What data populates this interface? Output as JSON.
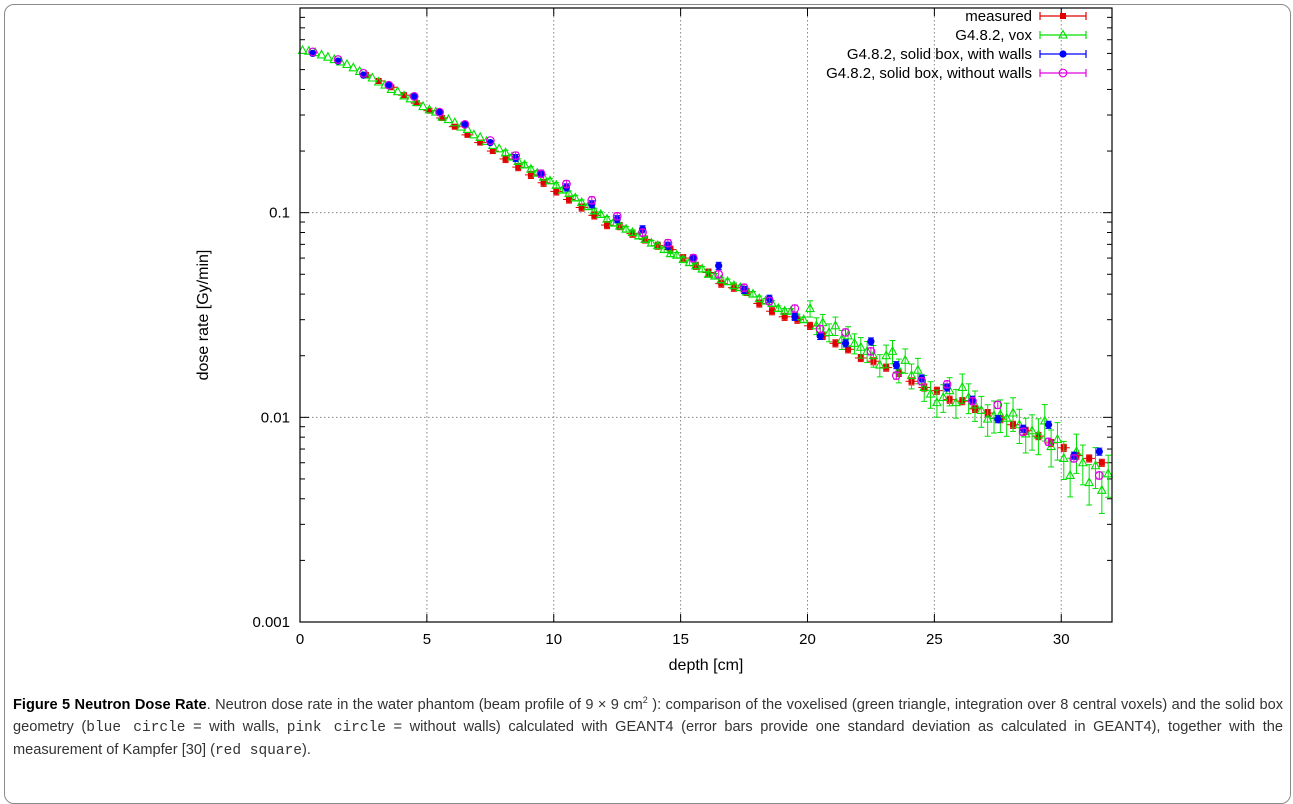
{
  "chart_data": {
    "type": "scatter",
    "title": "",
    "xlabel": "depth [cm]",
    "ylabel": "dose rate [Gy/min]",
    "xlim": [
      0,
      32
    ],
    "ylim": [
      0.001,
      1
    ],
    "yscale": "log",
    "grid": true,
    "legend_position": "top-right",
    "x_ticks": [
      "0",
      "5",
      "10",
      "15",
      "20",
      "25",
      "30"
    ],
    "y_ticks": [
      "0.001",
      "0.01",
      "0.1"
    ],
    "series": [
      {
        "name": "measured",
        "color": "#e00000",
        "marker": "filled-square",
        "x": [
          2.6,
          3.1,
          3.6,
          4.1,
          4.6,
          5.1,
          5.6,
          6.1,
          6.6,
          7.1,
          7.6,
          8.1,
          8.6,
          9.1,
          9.6,
          10.1,
          10.6,
          11.1,
          11.6,
          12.1,
          12.6,
          13.1,
          13.6,
          14.1,
          14.6,
          15.1,
          15.6,
          16.1,
          16.6,
          17.1,
          17.6,
          18.1,
          18.6,
          19.1,
          19.6,
          20.1,
          20.6,
          21.1,
          21.6,
          22.1,
          22.6,
          23.1,
          23.6,
          24.1,
          24.6,
          25.1,
          25.6,
          26.1,
          26.6,
          27.1,
          27.6,
          28.1,
          28.6,
          29.1,
          29.6,
          30.1,
          30.6,
          31.1,
          31.6
        ],
        "y": [
          0.47,
          0.44,
          0.41,
          0.375,
          0.343,
          0.315,
          0.29,
          0.263,
          0.24,
          0.22,
          0.2,
          0.183,
          0.167,
          0.153,
          0.14,
          0.127,
          0.116,
          0.106,
          0.097,
          0.087,
          0.086,
          0.079,
          0.074,
          0.069,
          0.066,
          0.06,
          0.055,
          0.051,
          0.045,
          0.043,
          0.041,
          0.036,
          0.033,
          0.031,
          0.03,
          0.028,
          0.025,
          0.023,
          0.0215,
          0.0195,
          0.0188,
          0.0175,
          0.0165,
          0.015,
          0.014,
          0.0135,
          0.0122,
          0.012,
          0.011,
          0.0105,
          0.0098,
          0.0092,
          0.0086,
          0.0081,
          0.0075,
          0.0071,
          0.0065,
          0.0063,
          0.006
        ]
      },
      {
        "name": "G4.8.2, vox",
        "color": "#00e000",
        "marker": "open-triangle",
        "x": [
          0.1,
          0.35,
          0.6,
          0.85,
          1.1,
          1.35,
          1.6,
          1.85,
          2.1,
          2.35,
          2.6,
          2.85,
          3.1,
          3.35,
          3.6,
          3.85,
          4.1,
          4.35,
          4.6,
          4.85,
          5.1,
          5.35,
          5.6,
          5.85,
          6.1,
          6.35,
          6.6,
          6.85,
          7.1,
          7.35,
          7.6,
          7.85,
          8.1,
          8.35,
          8.6,
          8.85,
          9.1,
          9.35,
          9.6,
          9.85,
          10.1,
          10.35,
          10.6,
          10.85,
          11.1,
          11.35,
          11.6,
          11.85,
          12.1,
          12.35,
          12.6,
          12.85,
          13.1,
          13.35,
          13.6,
          13.85,
          14.1,
          14.35,
          14.6,
          14.85,
          15.1,
          15.35,
          15.6,
          15.85,
          16.1,
          16.35,
          16.6,
          16.85,
          17.1,
          17.35,
          17.6,
          17.85,
          18.1,
          18.35,
          18.6,
          18.85,
          19.1,
          19.35,
          19.6,
          19.85,
          20.1,
          20.35,
          20.6,
          20.85,
          21.1,
          21.35,
          21.6,
          21.85,
          22.1,
          22.35,
          22.6,
          22.85,
          23.1,
          23.35,
          23.6,
          23.85,
          24.1,
          24.35,
          24.6,
          24.85,
          25.1,
          25.35,
          25.6,
          25.85,
          26.1,
          26.35,
          26.6,
          26.85,
          27.1,
          27.35,
          27.6,
          27.85,
          28.1,
          28.35,
          28.6,
          28.85,
          29.1,
          29.35,
          29.6,
          29.85,
          30.1,
          30.35,
          30.6,
          30.85,
          31.1,
          31.35,
          31.6,
          31.85
        ],
        "y": [
          0.62,
          0.615,
          0.605,
          0.59,
          0.575,
          0.56,
          0.545,
          0.53,
          0.51,
          0.49,
          0.47,
          0.455,
          0.435,
          0.42,
          0.4,
          0.39,
          0.372,
          0.36,
          0.345,
          0.33,
          0.318,
          0.31,
          0.293,
          0.285,
          0.275,
          0.262,
          0.255,
          0.24,
          0.233,
          0.223,
          0.213,
          0.205,
          0.196,
          0.187,
          0.178,
          0.171,
          0.163,
          0.156,
          0.149,
          0.143,
          0.136,
          0.129,
          0.124,
          0.118,
          0.112,
          0.107,
          0.102,
          0.098,
          0.093,
          0.089,
          0.086,
          0.083,
          0.08,
          0.077,
          0.074,
          0.071,
          0.069,
          0.066,
          0.063,
          0.062,
          0.059,
          0.057,
          0.055,
          0.053,
          0.05,
          0.049,
          0.047,
          0.046,
          0.044,
          0.043,
          0.041,
          0.04,
          0.038,
          0.037,
          0.036,
          0.034,
          0.033,
          0.033,
          0.031,
          0.03,
          0.034,
          0.028,
          0.029,
          0.026,
          0.028,
          0.024,
          0.025,
          0.023,
          0.022,
          0.021,
          0.02,
          0.018,
          0.02,
          0.021,
          0.017,
          0.019,
          0.016,
          0.017,
          0.014,
          0.013,
          0.0118,
          0.0125,
          0.0135,
          0.0118,
          0.014,
          0.0125,
          0.0115,
          0.0108,
          0.0098,
          0.0102,
          0.0103,
          0.0099,
          0.0105,
          0.0092,
          0.0083,
          0.0086,
          0.0082,
          0.0096,
          0.0072,
          0.0078,
          0.0063,
          0.0052,
          0.0068,
          0.006,
          0.0048,
          0.0058,
          0.0044,
          0.0053
        ]
      },
      {
        "name": "G4.8.2, solid box, with walls",
        "color": "#0000ff",
        "marker": "filled-circle",
        "x": [
          0.5,
          1.5,
          2.5,
          3.5,
          4.5,
          5.5,
          6.5,
          7.5,
          8.5,
          9.5,
          10.5,
          11.5,
          12.5,
          13.5,
          14.5,
          15.5,
          16.5,
          17.5,
          18.5,
          19.5,
          20.5,
          21.5,
          22.5,
          23.5,
          24.5,
          25.5,
          26.5,
          27.5,
          28.5,
          29.5,
          30.5,
          31.5
        ],
        "y": [
          0.6,
          0.55,
          0.47,
          0.42,
          0.37,
          0.31,
          0.27,
          0.22,
          0.185,
          0.155,
          0.133,
          0.11,
          0.093,
          0.083,
          0.069,
          0.06,
          0.055,
          0.042,
          0.038,
          0.031,
          0.025,
          0.023,
          0.0235,
          0.018,
          0.0155,
          0.014,
          0.0122,
          0.0098,
          0.0088,
          0.0092,
          0.0065,
          0.0068
        ]
      },
      {
        "name": "G4.8.2, solid box, without walls",
        "color": "#e000e0",
        "marker": "open-circle",
        "x": [
          0.5,
          1.5,
          2.5,
          3.5,
          4.5,
          5.5,
          6.5,
          7.5,
          8.5,
          9.5,
          10.5,
          11.5,
          12.5,
          13.5,
          14.5,
          15.5,
          16.5,
          17.5,
          18.5,
          19.5,
          20.5,
          21.5,
          22.5,
          23.5,
          24.5,
          25.5,
          26.5,
          27.5,
          28.5,
          29.5,
          30.5,
          31.5
        ],
        "y": [
          0.61,
          0.56,
          0.48,
          0.42,
          0.37,
          0.31,
          0.27,
          0.225,
          0.19,
          0.155,
          0.138,
          0.115,
          0.096,
          0.08,
          0.071,
          0.06,
          0.05,
          0.043,
          0.037,
          0.034,
          0.027,
          0.026,
          0.021,
          0.016,
          0.015,
          0.0145,
          0.012,
          0.0115,
          0.0085,
          0.0076,
          0.0063,
          0.0052
        ]
      }
    ]
  },
  "caption": {
    "figure_label": "Figure 5 Neutron Dose Rate",
    "part1": ". Neutron dose rate in the water phantom (beam profile of 9 × 9 cm",
    "sup": "2",
    "part2": " ): comparison of the voxelised (green triangle, integration over 8 central voxels) and the solid box geometry (",
    "code1": "blue circle",
    "part3": " = with walls, ",
    "code2": "pink circle",
    "part4": " = without walls) calculated with GEANT4 (error bars provide one standard deviation as calculated in GEANT4), together with the measurement of Kampfer [30] (",
    "code3": "red square",
    "part5": ")."
  }
}
